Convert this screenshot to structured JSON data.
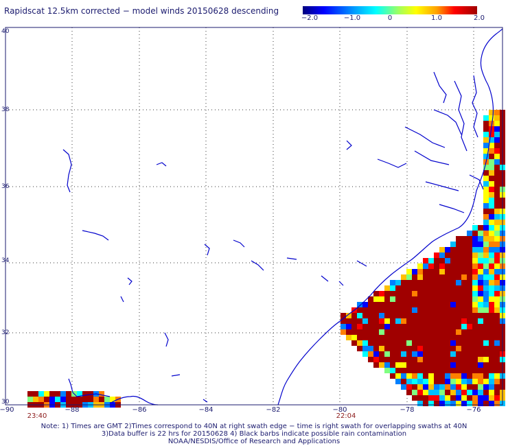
{
  "title": "Rapidscat 12.5km corrected − model winds 20150628 descending",
  "colorbar": {
    "labels": [
      "−2.0",
      "−1.0",
      "0",
      "1.0",
      "2.0"
    ],
    "values": [
      -2.0,
      -1.0,
      0,
      1.0,
      2.0
    ],
    "colors": [
      "#000080",
      "#0000ff",
      "#00a0ff",
      "#00ffff",
      "#a0ff60",
      "#ffff00",
      "#ffa000",
      "#ff0000",
      "#a00000"
    ]
  },
  "axes": {
    "lon_ticks": [
      "−90",
      "−88",
      "−86",
      "−84",
      "−82",
      "−80",
      "−78",
      "−76"
    ],
    "lon_values": [
      -90,
      -88,
      -86,
      -84,
      -82,
      -80,
      -78,
      -76
    ],
    "lat_ticks": [
      "40",
      "38",
      "36",
      "34",
      "32",
      "30"
    ],
    "lat_values": [
      40,
      38,
      36,
      34,
      32,
      30
    ],
    "lon_range": [
      -90,
      -75.2
    ],
    "lat_range": [
      30,
      40
    ]
  },
  "time_labels": [
    {
      "text": "23:40",
      "lon": -89
    },
    {
      "text": "22:04",
      "lon": -79.7
    }
  ],
  "notes": [
    "Note: 1) Times are GMT 2)Times correspond to 40N at right swath edge − time is right swath for overlapping swaths at 40N",
    "3)Data buffer is 22 hrs for 20150628 4) Black barbs indicate possible rain contamination",
    "NOAA/NESDIS/Office of Research and Applications"
  ]
}
